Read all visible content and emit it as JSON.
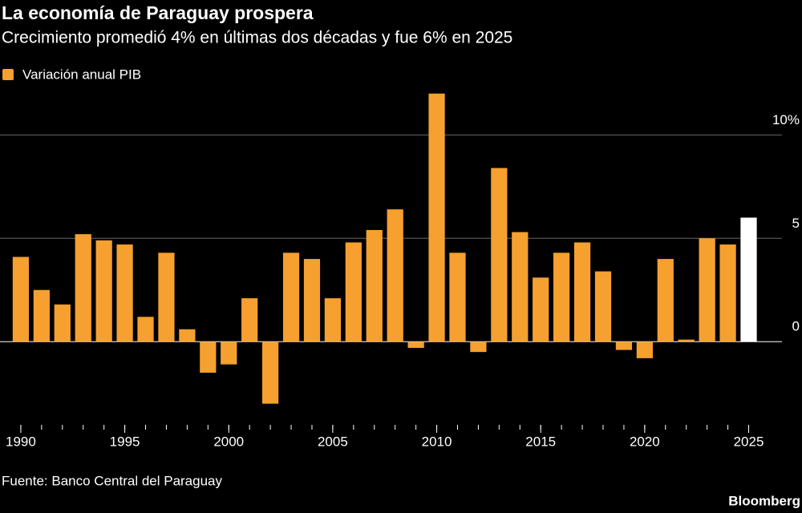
{
  "chart_data": {
    "type": "bar",
    "title": "La economía de Paraguay prospera",
    "subtitle": "Crecimiento promedió 4% en últimas dos décadas y fue 6% en 2025",
    "source": "Fuente: Banco Central del Paraguay",
    "credit": "Bloomberg",
    "x": [
      1990,
      1991,
      1992,
      1993,
      1994,
      1995,
      1996,
      1997,
      1998,
      1999,
      2000,
      2001,
      2002,
      2003,
      2004,
      2005,
      2006,
      2007,
      2008,
      2009,
      2010,
      2011,
      2012,
      2013,
      2014,
      2015,
      2016,
      2017,
      2018,
      2019,
      2020,
      2021,
      2022,
      2023,
      2024,
      2025
    ],
    "series": [
      {
        "name": "Variación anual PIB",
        "color": "#f5a02f",
        "values": [
          4.1,
          2.5,
          1.8,
          5.2,
          4.9,
          4.7,
          1.2,
          4.3,
          0.6,
          -1.5,
          -1.1,
          2.1,
          -3.0,
          4.3,
          4.0,
          2.1,
          4.8,
          5.4,
          6.4,
          -0.3,
          12.0,
          4.3,
          -0.5,
          8.4,
          5.3,
          3.1,
          4.3,
          4.8,
          3.4,
          -0.4,
          -0.8,
          4.0,
          0.1,
          5.0,
          4.7,
          6.0
        ],
        "colors": [
          "#f5a02f",
          "#f5a02f",
          "#f5a02f",
          "#f5a02f",
          "#f5a02f",
          "#f5a02f",
          "#f5a02f",
          "#f5a02f",
          "#f5a02f",
          "#f5a02f",
          "#f5a02f",
          "#f5a02f",
          "#f5a02f",
          "#f5a02f",
          "#f5a02f",
          "#f5a02f",
          "#f5a02f",
          "#f5a02f",
          "#f5a02f",
          "#f5a02f",
          "#f5a02f",
          "#f5a02f",
          "#f5a02f",
          "#f5a02f",
          "#f5a02f",
          "#f5a02f",
          "#f5a02f",
          "#f5a02f",
          "#f5a02f",
          "#f5a02f",
          "#f5a02f",
          "#f5a02f",
          "#f5a02f",
          "#f5a02f",
          "#f5a02f",
          "#ffffff"
        ]
      }
    ],
    "xlim": [
      1989,
      2026.6
    ],
    "xticks": [
      1990,
      1995,
      2000,
      2005,
      2010,
      2015,
      2020,
      2025
    ],
    "ylim": [
      -4.1,
      12.3
    ],
    "yticks": [
      0,
      5,
      {
        "value": 10,
        "label": "10%"
      }
    ],
    "grid": true
  }
}
